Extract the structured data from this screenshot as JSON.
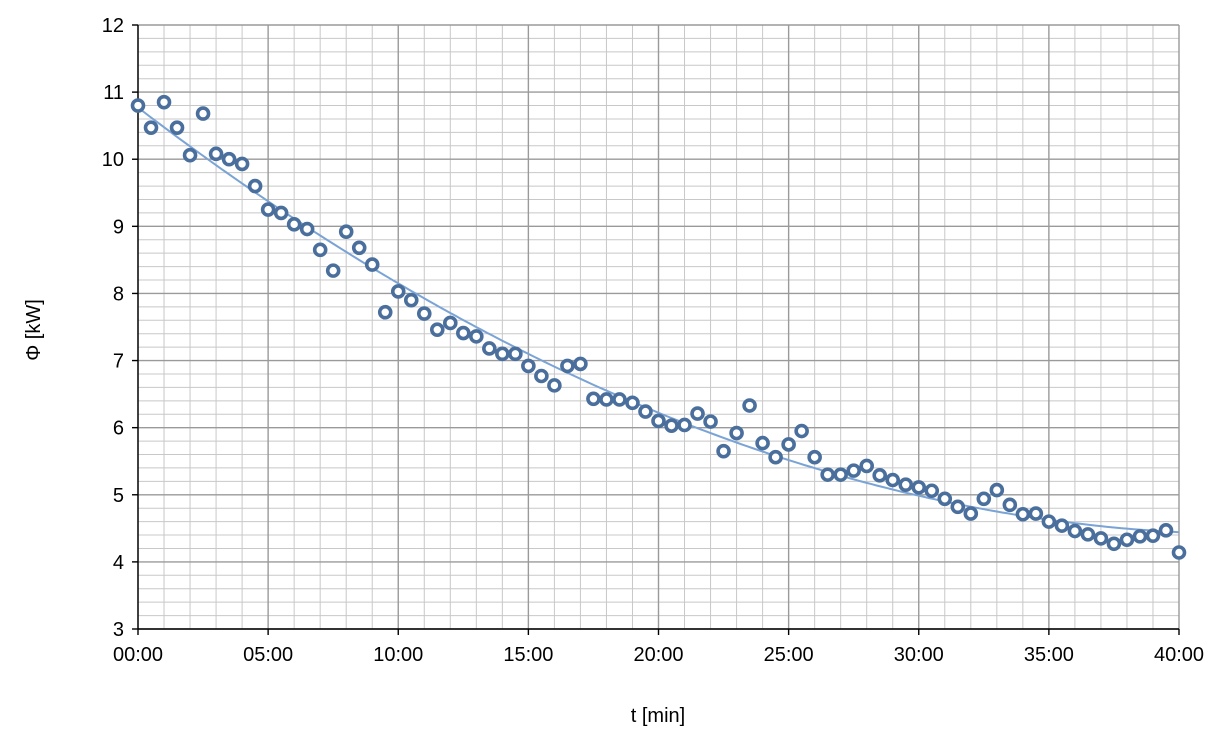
{
  "chart_data": {
    "type": "scatter",
    "xlabel": "t [min]",
    "ylabel": "Φ [kW]",
    "xlim": [
      0,
      40
    ],
    "ylim": [
      3,
      12
    ],
    "xticks": [
      0,
      5,
      10,
      15,
      20,
      25,
      30,
      35,
      40
    ],
    "xtick_labels": [
      "00:00",
      "05:00",
      "10:00",
      "15:00",
      "20:00",
      "25:00",
      "30:00",
      "35:00",
      "40:00"
    ],
    "yticks": [
      3,
      4,
      5,
      6,
      7,
      8,
      9,
      10,
      11,
      12
    ],
    "ytick_labels": [
      "3",
      "4",
      "5",
      "6",
      "7",
      "8",
      "9",
      "10",
      "11",
      "12"
    ],
    "grid": true,
    "legend": "none",
    "colors": {
      "marker": "#4a6f9c",
      "trendline": "#7aa3d6",
      "major_grid": "#9a9a9a",
      "minor_grid": "#c8c8c8"
    },
    "series": [
      {
        "x": [
          0,
          0.5,
          1,
          1.5,
          2,
          2.5,
          3,
          3.5,
          4,
          4.5,
          5,
          5.5,
          6,
          6.5,
          7,
          7.5,
          8,
          8.5,
          9,
          9.5,
          10,
          10.5,
          11,
          11.5,
          12,
          12.5,
          13,
          13.5,
          14,
          14.5,
          15,
          15.5,
          16,
          16.5,
          17,
          17.5,
          18,
          18.5,
          19,
          19.5,
          20,
          20.5,
          21,
          21.5,
          22,
          22.5,
          23,
          23.5,
          24,
          24.5,
          25,
          25.5,
          26,
          26.5,
          27,
          27.5,
          28,
          28.5,
          29,
          29.5,
          30,
          30.5,
          31,
          31.5,
          32,
          32.5,
          33,
          33.5,
          34,
          34.5,
          35,
          35.5,
          36,
          36.5,
          37,
          37.5,
          38,
          38.5,
          39,
          39.5,
          40
        ],
        "values": [
          10.8,
          10.47,
          10.85,
          10.47,
          10.06,
          10.68,
          10.08,
          10.0,
          9.93,
          9.6,
          9.25,
          9.2,
          9.03,
          8.96,
          8.65,
          8.34,
          8.92,
          8.68,
          8.43,
          7.72,
          8.03,
          7.9,
          7.7,
          7.46,
          7.56,
          7.41,
          7.36,
          7.18,
          7.1,
          7.1,
          6.92,
          6.77,
          6.63,
          6.92,
          6.95,
          6.43,
          6.42,
          6.42,
          6.37,
          6.24,
          6.1,
          6.03,
          6.04,
          6.21,
          6.09,
          5.65,
          5.92,
          6.33,
          5.77,
          5.56,
          5.75,
          5.95,
          5.56,
          5.3,
          5.3,
          5.36,
          5.43,
          5.29,
          5.22,
          5.15,
          5.11,
          5.06,
          4.94,
          4.82,
          4.72,
          4.94,
          5.07,
          4.85,
          4.71,
          4.72,
          4.6,
          4.54,
          4.46,
          4.41,
          4.35,
          4.27,
          4.33,
          4.38,
          4.39,
          4.47,
          4.14
        ]
      }
    ]
  }
}
